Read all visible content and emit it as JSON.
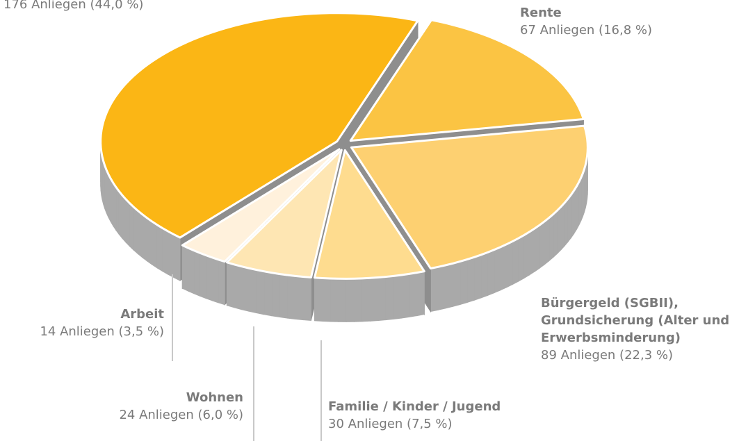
{
  "chart_data": {
    "type": "pie",
    "categories": [
      null,
      "Rente",
      "Bürgergeld (SGBII), Grundsicherung (Alter und Erwerbsminderung)",
      "Familie / Kinder / Jugend",
      "Wohnen",
      "Arbeit"
    ],
    "values": [
      176,
      67,
      89,
      30,
      24,
      14
    ],
    "value_labels": [
      "176 Anliegen (44,0 %)",
      "67 Anliegen (16,8 %)",
      "89 Anliegen (22,3 %)",
      "30 Anliegen (7,5 %)",
      "24 Anliegen (6,0 %)",
      "14 Anliegen (3,5 %)"
    ],
    "colors": [
      "#fbb615",
      "#fbc443",
      "#fdd071",
      "#fedc8f",
      "#fee6b3",
      "#fff1dc"
    ],
    "side_color": "#a9a9a9"
  }
}
